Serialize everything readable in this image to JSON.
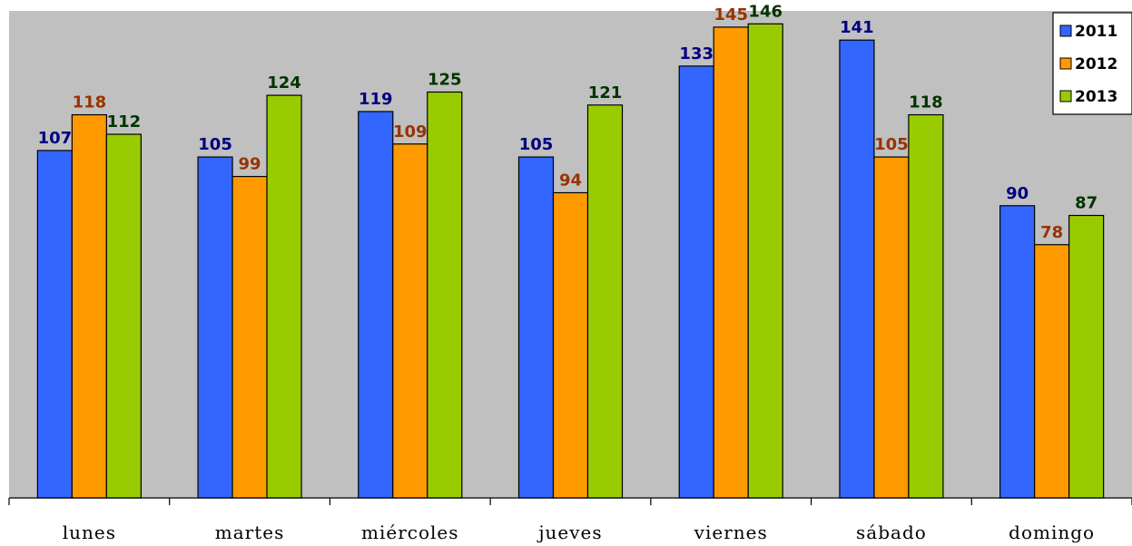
{
  "chart_data": {
    "type": "bar",
    "categories": [
      "lunes",
      "martes",
      "miércoles",
      "jueves",
      "viernes",
      "sábado",
      "domingo"
    ],
    "series": [
      {
        "name": "2011",
        "values": [
          107,
          105,
          119,
          105,
          133,
          141,
          90
        ],
        "color": "#3366ff",
        "label_color": "#000080"
      },
      {
        "name": "2012",
        "values": [
          118,
          99,
          109,
          94,
          145,
          105,
          78
        ],
        "color": "#ff9900",
        "label_color": "#993300"
      },
      {
        "name": "2013",
        "values": [
          112,
          124,
          125,
          121,
          146,
          118,
          87
        ],
        "color": "#99cc00",
        "label_color": "#003300"
      }
    ],
    "ylim": [
      0,
      150
    ],
    "grid": false,
    "legend": "top-right",
    "plot_background": "#c0c0c0"
  }
}
